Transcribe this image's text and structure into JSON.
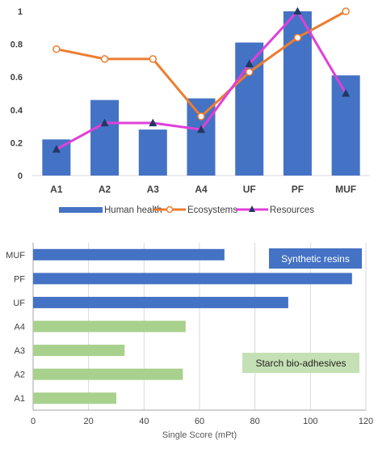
{
  "colors": {
    "bar_blue": "#4472C4",
    "bar_green": "#A9D18E",
    "ecosystems": "#ED7D31",
    "resources": "#E040D8",
    "marker_dark": "#1F3864",
    "axis_text": "#404040",
    "gridline": "#D9D9D9",
    "label_box_blue": "#4472C4",
    "label_box_green": "#C5E0B4"
  },
  "chart_data": [
    {
      "type": "bar",
      "categories": [
        "A1",
        "A2",
        "A3",
        "A4",
        "UF",
        "PF",
        "MUF"
      ],
      "ylim": [
        0,
        1
      ],
      "yticks": [
        "0",
        "0.2",
        "0.4",
        "0.6",
        "0.8",
        "1"
      ],
      "ytick_values": [
        0,
        0.2,
        0.4,
        0.6,
        0.8,
        1
      ],
      "grid": false,
      "legend_position": "bottom",
      "series": [
        {
          "name": "Human health",
          "kind": "bar",
          "marker": "none",
          "color": "#4472C4",
          "values": [
            0.22,
            0.46,
            0.28,
            0.47,
            0.81,
            1.0,
            0.61
          ]
        },
        {
          "name": "Ecosystems",
          "kind": "line",
          "marker": "circle",
          "color": "#ED7D31",
          "values": [
            0.77,
            0.71,
            0.71,
            0.36,
            0.63,
            0.84,
            1.0
          ]
        },
        {
          "name": "Resources",
          "kind": "line",
          "marker": "triangle",
          "color": "#E040D8",
          "values": [
            0.16,
            0.32,
            0.32,
            0.28,
            0.68,
            1.0,
            0.5
          ]
        }
      ]
    },
    {
      "type": "bar",
      "orientation": "horizontal",
      "categories": [
        "MUF",
        "PF",
        "UF",
        "A4",
        "A3",
        "A2",
        "A1"
      ],
      "values": [
        69,
        115,
        92,
        55,
        33,
        54,
        30
      ],
      "bar_colors": [
        "#4472C4",
        "#4472C4",
        "#4472C4",
        "#A9D18E",
        "#A9D18E",
        "#A9D18E",
        "#A9D18E"
      ],
      "xlim": [
        0,
        120
      ],
      "xticks": [
        "0",
        "20",
        "40",
        "60",
        "80",
        "100",
        "120"
      ],
      "xtick_values": [
        0,
        20,
        40,
        60,
        80,
        100,
        120
      ],
      "xlabel": "Single Score (mPt)",
      "annotations": [
        "Synthetic resins",
        "Starch bio-adhesives"
      ]
    }
  ]
}
